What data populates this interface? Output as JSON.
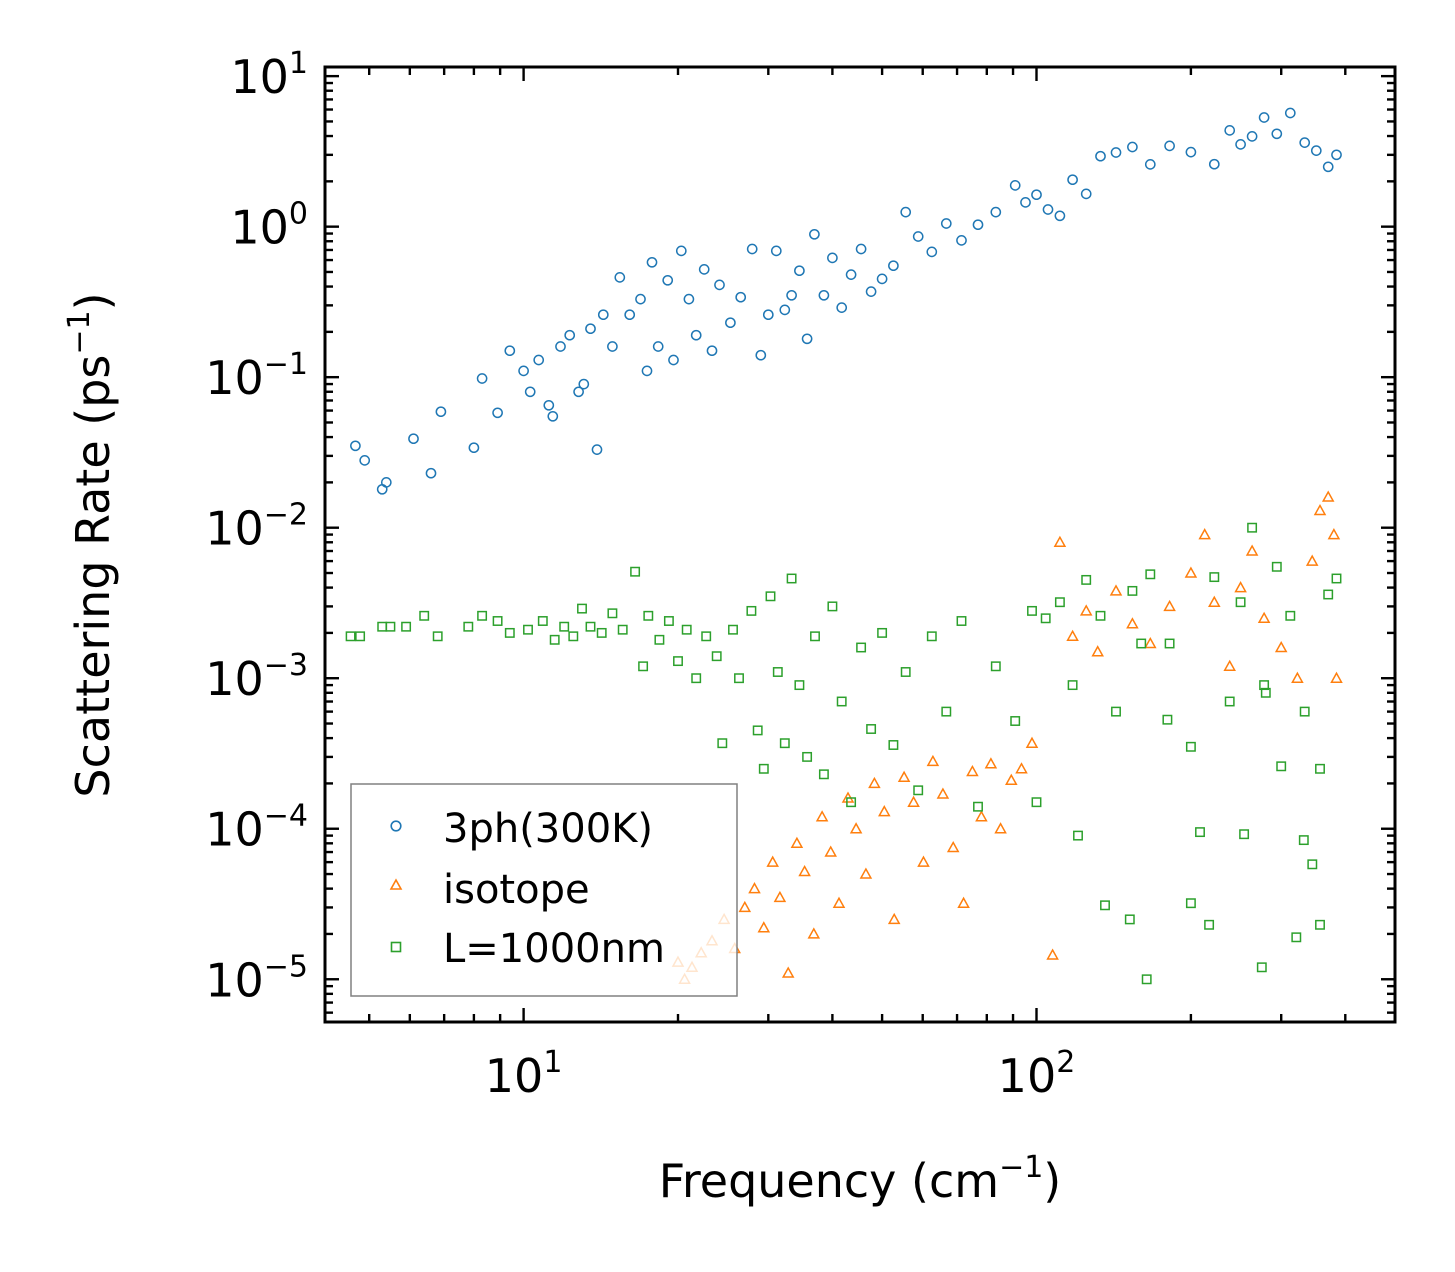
{
  "chart_data": {
    "type": "scatter",
    "title": "",
    "xlabel": "Frequency (cm",
    "xlabel_sup": "−1",
    "xlabel_end": ")",
    "ylabel": "Scattering Rate (ps",
    "ylabel_sup": "−1",
    "ylabel_end": ")",
    "xscale": "log",
    "yscale": "log",
    "xlim": [
      4.1,
      500
    ],
    "ylim": [
      5.2e-06,
      11.5
    ],
    "grid": false,
    "legend_position": "bottom-left",
    "x_ticks": [
      {
        "value": 10,
        "base": "10",
        "exp": "1"
      },
      {
        "value": 100,
        "base": "10",
        "exp": "2"
      }
    ],
    "y_ticks": [
      {
        "value": 10,
        "base": "10",
        "exp": "1"
      },
      {
        "value": 1,
        "base": "10",
        "exp": "0"
      },
      {
        "value": 0.1,
        "base": "10",
        "exp": "−1"
      },
      {
        "value": 0.01,
        "base": "10",
        "exp": "−2"
      },
      {
        "value": 0.001,
        "base": "10",
        "exp": "−3"
      },
      {
        "value": 0.0001,
        "base": "10",
        "exp": "−4"
      },
      {
        "value": 1e-05,
        "base": "10",
        "exp": "−5"
      }
    ],
    "series": [
      {
        "name": "3ph(300K)",
        "marker": "circle",
        "color": "#1f77b4",
        "points": [
          [
            4.7,
            0.035
          ],
          [
            4.9,
            0.028
          ],
          [
            5.3,
            0.018
          ],
          [
            5.4,
            0.02
          ],
          [
            6.1,
            0.039
          ],
          [
            6.6,
            0.023
          ],
          [
            6.9,
            0.059
          ],
          [
            8.0,
            0.034
          ],
          [
            8.3,
            0.098
          ],
          [
            8.9,
            0.058
          ],
          [
            9.4,
            0.15
          ],
          [
            10.0,
            0.11
          ],
          [
            10.3,
            0.08
          ],
          [
            10.7,
            0.13
          ],
          [
            11.2,
            0.065
          ],
          [
            11.4,
            0.055
          ],
          [
            11.8,
            0.16
          ],
          [
            12.3,
            0.19
          ],
          [
            12.8,
            0.08
          ],
          [
            13.1,
            0.09
          ],
          [
            13.5,
            0.21
          ],
          [
            13.9,
            0.033
          ],
          [
            14.3,
            0.26
          ],
          [
            14.9,
            0.16
          ],
          [
            15.4,
            0.46
          ],
          [
            16.1,
            0.26
          ],
          [
            16.9,
            0.33
          ],
          [
            17.4,
            0.11
          ],
          [
            17.8,
            0.58
          ],
          [
            18.3,
            0.16
          ],
          [
            19.1,
            0.44
          ],
          [
            19.6,
            0.13
          ],
          [
            20.3,
            0.69
          ],
          [
            21.0,
            0.33
          ],
          [
            21.7,
            0.19
          ],
          [
            22.5,
            0.52
          ],
          [
            23.3,
            0.15
          ],
          [
            24.1,
            0.41
          ],
          [
            25.3,
            0.23
          ],
          [
            26.5,
            0.34
          ],
          [
            27.9,
            0.71
          ],
          [
            29.0,
            0.14
          ],
          [
            30.0,
            0.26
          ],
          [
            31.1,
            0.69
          ],
          [
            32.3,
            0.28
          ],
          [
            33.3,
            0.35
          ],
          [
            34.5,
            0.51
          ],
          [
            35.7,
            0.18
          ],
          [
            36.9,
            0.89
          ],
          [
            38.5,
            0.35
          ],
          [
            40.0,
            0.62
          ],
          [
            41.7,
            0.29
          ],
          [
            43.5,
            0.48
          ],
          [
            45.5,
            0.71
          ],
          [
            47.6,
            0.37
          ],
          [
            50.0,
            0.45
          ],
          [
            52.6,
            0.55
          ],
          [
            55.6,
            1.25
          ],
          [
            58.8,
            0.86
          ],
          [
            62.5,
            0.68
          ],
          [
            66.7,
            1.05
          ],
          [
            71.4,
            0.81
          ],
          [
            76.9,
            1.03
          ],
          [
            83.3,
            1.25
          ],
          [
            90.9,
            1.88
          ],
          [
            95.2,
            1.45
          ],
          [
            100.0,
            1.63
          ],
          [
            105.3,
            1.3
          ],
          [
            111.1,
            1.18
          ],
          [
            117.6,
            2.05
          ],
          [
            125.0,
            1.65
          ],
          [
            133.3,
            2.94
          ],
          [
            142.9,
            3.11
          ],
          [
            153.8,
            3.38
          ],
          [
            166.7,
            2.59
          ],
          [
            181.8,
            3.44
          ],
          [
            200.0,
            3.13
          ],
          [
            222.2,
            2.6
          ],
          [
            238.1,
            4.36
          ],
          [
            250.0,
            3.52
          ],
          [
            263.2,
            3.98
          ],
          [
            277.8,
            5.31
          ],
          [
            294.1,
            4.14
          ],
          [
            312.5,
            5.69
          ],
          [
            333.3,
            3.62
          ],
          [
            351.1,
            3.2
          ],
          [
            370.4,
            2.5
          ],
          [
            384.6,
            3.0
          ]
        ]
      },
      {
        "name": "isotope",
        "marker": "triangle",
        "color": "#ff7f0e",
        "points": [
          [
            20.0,
            1.3e-05
          ],
          [
            20.6,
            1e-05
          ],
          [
            21.3,
            1.2e-05
          ],
          [
            22.2,
            1.5e-05
          ],
          [
            23.3,
            1.8e-05
          ],
          [
            24.6,
            2.5e-05
          ],
          [
            25.8,
            1.6e-05
          ],
          [
            27.0,
            3e-05
          ],
          [
            28.2,
            4e-05
          ],
          [
            29.4,
            2.2e-05
          ],
          [
            30.6,
            6e-05
          ],
          [
            31.6,
            3.5e-05
          ],
          [
            32.8,
            1.1e-05
          ],
          [
            34.1,
            8e-05
          ],
          [
            35.3,
            5.2e-05
          ],
          [
            36.8,
            2e-05
          ],
          [
            38.2,
            0.00012
          ],
          [
            39.7,
            7e-05
          ],
          [
            41.2,
            3.2e-05
          ],
          [
            42.9,
            0.00016
          ],
          [
            44.5,
            0.0001
          ],
          [
            46.5,
            5e-05
          ],
          [
            48.3,
            0.0002
          ],
          [
            50.5,
            0.00013
          ],
          [
            52.8,
            2.5e-05
          ],
          [
            55.2,
            0.00022
          ],
          [
            57.6,
            0.00015
          ],
          [
            60.2,
            6e-05
          ],
          [
            62.8,
            0.00028
          ],
          [
            65.7,
            0.00017
          ],
          [
            68.8,
            7.5e-05
          ],
          [
            72.1,
            3.2e-05
          ],
          [
            75.0,
            0.00024
          ],
          [
            78.1,
            0.00012
          ],
          [
            81.5,
            0.00027
          ],
          [
            85.1,
            0.0001
          ],
          [
            89.3,
            0.00021
          ],
          [
            93.5,
            0.00025
          ],
          [
            98.0,
            0.00037
          ],
          [
            107.5,
            1.45e-05
          ],
          [
            111.1,
            0.008
          ],
          [
            117.6,
            0.0019
          ],
          [
            125.0,
            0.0028
          ],
          [
            131.6,
            0.0015
          ],
          [
            142.9,
            0.0038
          ],
          [
            153.8,
            0.0023
          ],
          [
            166.7,
            0.0017
          ],
          [
            181.8,
            0.003
          ],
          [
            200.0,
            0.005
          ],
          [
            212.8,
            0.009
          ],
          [
            222.2,
            0.0032
          ],
          [
            238.1,
            0.0012
          ],
          [
            250.0,
            0.004
          ],
          [
            263.2,
            0.007
          ],
          [
            277.8,
            0.0025
          ],
          [
            300.0,
            0.0016
          ],
          [
            322.6,
            0.001
          ],
          [
            344.8,
            0.006
          ],
          [
            357.1,
            0.013
          ],
          [
            370.4,
            0.016
          ],
          [
            380.0,
            0.009
          ],
          [
            384.6,
            0.001
          ]
        ]
      },
      {
        "name": "L=1000nm",
        "marker": "square",
        "color": "#2ca02c",
        "points": [
          [
            4.6,
            0.0019
          ],
          [
            4.8,
            0.0019
          ],
          [
            5.3,
            0.0022
          ],
          [
            5.5,
            0.0022
          ],
          [
            5.9,
            0.0022
          ],
          [
            6.4,
            0.0026
          ],
          [
            6.8,
            0.0019
          ],
          [
            7.8,
            0.0022
          ],
          [
            8.3,
            0.0026
          ],
          [
            8.9,
            0.0024
          ],
          [
            9.4,
            0.002
          ],
          [
            10.2,
            0.0021
          ],
          [
            10.9,
            0.0024
          ],
          [
            11.5,
            0.0018
          ],
          [
            12.0,
            0.0022
          ],
          [
            12.5,
            0.0019
          ],
          [
            13.0,
            0.0029
          ],
          [
            13.5,
            0.0022
          ],
          [
            14.2,
            0.002
          ],
          [
            14.9,
            0.0027
          ],
          [
            15.6,
            0.0021
          ],
          [
            16.5,
            0.0051
          ],
          [
            17.1,
            0.0012
          ],
          [
            17.5,
            0.0026
          ],
          [
            18.4,
            0.0018
          ],
          [
            19.2,
            0.0024
          ],
          [
            20.0,
            0.0013
          ],
          [
            20.8,
            0.0021
          ],
          [
            21.7,
            0.001
          ],
          [
            22.7,
            0.0019
          ],
          [
            23.8,
            0.0014
          ],
          [
            24.4,
            0.00037
          ],
          [
            25.6,
            0.0021
          ],
          [
            26.3,
            0.001
          ],
          [
            27.8,
            0.0028
          ],
          [
            28.6,
            0.00045
          ],
          [
            29.4,
            0.00025
          ],
          [
            30.3,
            0.0035
          ],
          [
            31.3,
            0.0011
          ],
          [
            32.3,
            0.00037
          ],
          [
            33.3,
            0.0046
          ],
          [
            34.5,
            0.0009
          ],
          [
            35.7,
            0.0003
          ],
          [
            37.0,
            0.0019
          ],
          [
            38.5,
            0.00023
          ],
          [
            40.0,
            0.003
          ],
          [
            41.7,
            0.0007
          ],
          [
            43.5,
            0.00015
          ],
          [
            45.5,
            0.0016
          ],
          [
            47.6,
            0.00046
          ],
          [
            50.0,
            0.002
          ],
          [
            52.6,
            0.00036
          ],
          [
            55.6,
            0.0011
          ],
          [
            58.8,
            0.00018
          ],
          [
            62.5,
            0.0019
          ],
          [
            66.7,
            0.0006
          ],
          [
            71.4,
            0.0024
          ],
          [
            76.9,
            0.00014
          ],
          [
            83.3,
            0.0012
          ],
          [
            90.9,
            0.00052
          ],
          [
            98.0,
            0.0028
          ],
          [
            100.0,
            0.00015
          ],
          [
            104.2,
            0.0025
          ],
          [
            111.1,
            0.0032
          ],
          [
            117.6,
            0.0009
          ],
          [
            125.0,
            0.0045
          ],
          [
            133.3,
            0.0026
          ],
          [
            142.9,
            0.0006
          ],
          [
            153.8,
            0.0038
          ],
          [
            166.7,
            0.0049
          ],
          [
            181.8,
            0.0017
          ],
          [
            200.0,
            0.00035
          ],
          [
            208.3,
            9.5e-05
          ],
          [
            222.2,
            0.0047
          ],
          [
            238.1,
            0.0007
          ],
          [
            250.0,
            0.0032
          ],
          [
            263.2,
            0.01
          ],
          [
            277.8,
            0.0009
          ],
          [
            294.1,
            0.0055
          ],
          [
            312.5,
            0.0026
          ],
          [
            333.3,
            0.0006
          ],
          [
            357.1,
            0.00025
          ],
          [
            370.4,
            0.0036
          ],
          [
            384.6,
            0.0046
          ],
          [
            120.5,
            9e-05
          ],
          [
            136.0,
            3.1e-05
          ],
          [
            152.0,
            2.5e-05
          ],
          [
            164.0,
            1e-05
          ],
          [
            200.0,
            3.2e-05
          ],
          [
            217.0,
            2.3e-05
          ],
          [
            254.0,
            9.2e-05
          ],
          [
            275.0,
            1.2e-05
          ],
          [
            321.0,
            1.9e-05
          ],
          [
            332.0,
            8.4e-05
          ],
          [
            345.0,
            5.8e-05
          ],
          [
            357.0,
            2.3e-05
          ],
          [
            300.0,
            0.00026
          ],
          [
            280.0,
            0.0008
          ],
          [
            180.0,
            0.00053
          ],
          [
            160.0,
            0.0017
          ]
        ]
      }
    ]
  }
}
